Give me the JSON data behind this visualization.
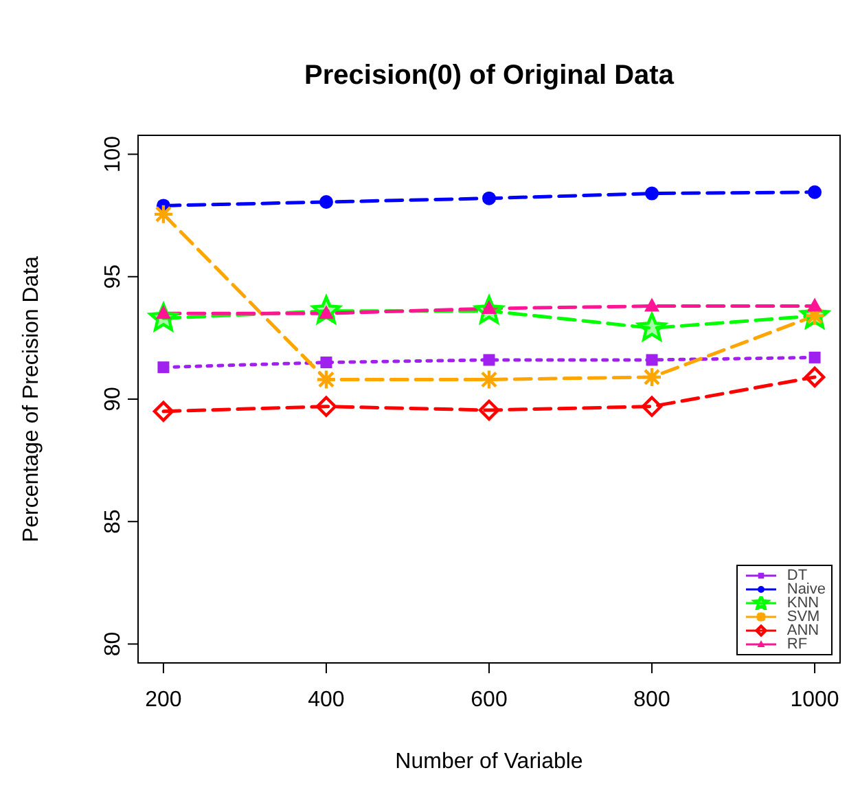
{
  "chart_data": {
    "type": "line",
    "title": "Precision(0) of Original Data",
    "xlabel": "Number of Variable",
    "ylabel": "Percentage of Precision Data",
    "x": [
      200,
      400,
      600,
      800,
      1000
    ],
    "xlim": [
      168,
      1032
    ],
    "xticks": [
      200,
      400,
      600,
      800,
      1000
    ],
    "ylim": [
      79.2,
      100.8
    ],
    "yticks": [
      80,
      85,
      90,
      95,
      100
    ],
    "grid": false,
    "legend": "bottom right",
    "series": [
      {
        "name": "DT",
        "color": "#a020f0",
        "marker": "square",
        "line_style": "dotted",
        "values": [
          91.3,
          91.5,
          91.6,
          91.6,
          91.7
        ]
      },
      {
        "name": "Naive",
        "color": "#0000ff",
        "marker": "circle",
        "line_style": "dashed",
        "values": [
          97.9,
          98.05,
          98.2,
          98.4,
          98.45
        ]
      },
      {
        "name": "KNN",
        "color": "#00ff00",
        "marker": "star",
        "line_style": "dashed",
        "values": [
          93.3,
          93.6,
          93.6,
          92.9,
          93.4
        ]
      },
      {
        "name": "SVM",
        "color": "#ffa500",
        "marker": "cross",
        "line_style": "dashed",
        "values": [
          97.55,
          90.8,
          90.8,
          90.9,
          93.4
        ]
      },
      {
        "name": "ANN",
        "color": "#ff0000",
        "marker": "diamond",
        "line_style": "dashed",
        "values": [
          89.5,
          89.7,
          89.55,
          89.7,
          90.9
        ]
      },
      {
        "name": "RF",
        "color": "#ff1493",
        "marker": "triangle",
        "line_style": "dashed",
        "values": [
          93.5,
          93.5,
          93.7,
          93.8,
          93.8
        ]
      }
    ]
  }
}
